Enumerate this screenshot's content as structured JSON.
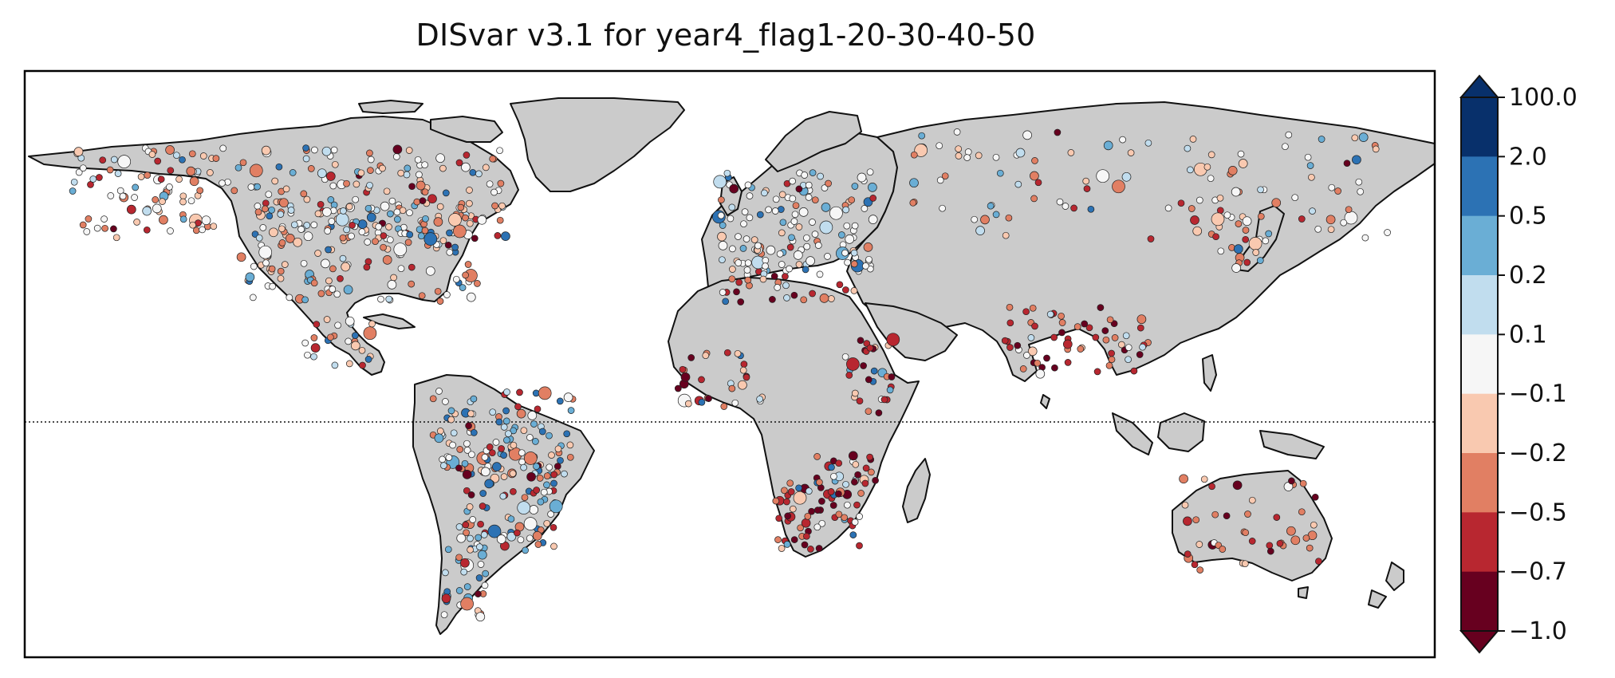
{
  "title": "DISvar v3.1 for year4_flag1-20-30-40-50",
  "colorbar": {
    "boundaries": [
      "100.0",
      "2.0",
      "0.5",
      "0.2",
      "0.1",
      "−0.1",
      "−0.2",
      "−0.5",
      "−0.7",
      "−1.0"
    ],
    "bins": [
      "#08306b",
      "#2c72b4",
      "#6aaed5",
      "#c1ddee",
      "#f6f6f6",
      "#f9c9b0",
      "#e17f63",
      "#b82730",
      "#67001f"
    ],
    "extend": "both"
  },
  "map": {
    "projection": "plate-carree",
    "land_color": "#cbcbcb",
    "equator_line": "dotted",
    "coastline_color": "#111111"
  }
}
